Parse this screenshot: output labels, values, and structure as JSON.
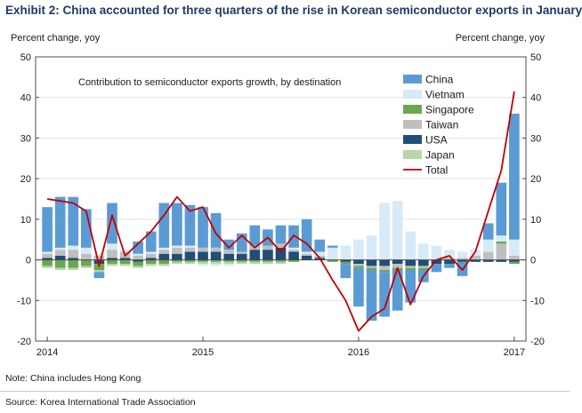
{
  "header": {
    "title": "Exhibit 2: China accounted for three quarters of the rise in Korean semiconductor exports in January"
  },
  "footer": {
    "note": "Note: China includes Hong Kong",
    "source": "Source: Korea International Trade Association"
  },
  "colors": {
    "China": "#5b9bd5",
    "Vietnam": "#d6eaf8",
    "Singapore": "#6aa84f",
    "Taiwan": "#bfbfbf",
    "USA": "#1f4e79",
    "Japan": "#b6d7a8",
    "Total": "#c00000"
  },
  "chart_data": {
    "type": "bar",
    "stacked": true,
    "title": "Contribution to semiconductor exports growth, by destination",
    "ylabel_left": "Percent change, yoy",
    "ylabel_right": "Percent change, yoy",
    "ylim": [
      -20,
      50
    ],
    "yticks": [
      -20,
      -10,
      0,
      10,
      20,
      30,
      40,
      50
    ],
    "x_ticks": [
      {
        "label": "2014",
        "index": 0
      },
      {
        "label": "2015",
        "index": 12
      },
      {
        "label": "2016",
        "index": 24
      },
      {
        "label": "2017",
        "index": 36
      }
    ],
    "legend_position": "top-right",
    "categories": [
      "Jan-14",
      "Feb-14",
      "Mar-14",
      "Apr-14",
      "May-14",
      "Jun-14",
      "Jul-14",
      "Aug-14",
      "Sep-14",
      "Oct-14",
      "Nov-14",
      "Dec-14",
      "Jan-15",
      "Feb-15",
      "Mar-15",
      "Apr-15",
      "May-15",
      "Jun-15",
      "Jul-15",
      "Aug-15",
      "Sep-15",
      "Oct-15",
      "Nov-15",
      "Dec-15",
      "Jan-16",
      "Feb-16",
      "Mar-16",
      "Apr-16",
      "May-16",
      "Jun-16",
      "Jul-16",
      "Aug-16",
      "Sep-16",
      "Oct-16",
      "Nov-16",
      "Dec-16",
      "Jan-17"
    ],
    "series": [
      {
        "name": "USA",
        "kind": "bar",
        "values": [
          0.5,
          1.0,
          0.5,
          0.0,
          -1.0,
          0.5,
          0.5,
          -0.5,
          0.5,
          1.5,
          1.5,
          2.0,
          2.0,
          2.0,
          1.5,
          1.5,
          2.5,
          2.5,
          3.0,
          2.0,
          1.0,
          0.5,
          0.0,
          -0.5,
          -1.0,
          -1.5,
          -1.5,
          -1.0,
          -1.5,
          -1.5,
          -1.0,
          -1.0,
          -0.5,
          -0.5,
          -0.5,
          -0.5,
          -0.5
        ]
      },
      {
        "name": "Taiwan",
        "kind": "bar",
        "values": [
          1.0,
          1.5,
          2.0,
          1.5,
          1.0,
          2.0,
          1.5,
          1.0,
          1.0,
          1.0,
          1.5,
          1.0,
          1.0,
          1.0,
          1.0,
          0.5,
          1.0,
          1.0,
          1.0,
          0.5,
          0.5,
          0.5,
          0.0,
          0.0,
          -0.5,
          -0.5,
          -1.0,
          -1.0,
          -0.5,
          -0.5,
          0.0,
          0.5,
          0.5,
          1.0,
          2.0,
          4.0,
          1.0
        ]
      },
      {
        "name": "Singapore",
        "kind": "bar",
        "values": [
          -1.5,
          -2.0,
          -2.0,
          -1.5,
          -1.5,
          -1.0,
          -1.0,
          -1.0,
          -1.0,
          -1.0,
          -0.5,
          -0.5,
          -0.5,
          -0.5,
          -0.5,
          -0.5,
          -0.5,
          -0.5,
          -0.5,
          -0.5,
          0.0,
          0.0,
          -0.5,
          -0.5,
          -0.5,
          -0.5,
          -0.5,
          -0.5,
          -0.5,
          -0.5,
          0.0,
          0.0,
          0.0,
          0.0,
          0.0,
          0.5,
          -0.5
        ]
      },
      {
        "name": "Japan",
        "kind": "bar",
        "values": [
          -0.5,
          -0.5,
          -0.5,
          -0.5,
          -0.5,
          -0.5,
          -0.5,
          -0.5,
          -0.5,
          -0.5,
          -0.5,
          -0.5,
          -0.5,
          -0.5,
          -0.5,
          -0.5,
          -0.5,
          -0.5,
          -0.5,
          0.0,
          0.0,
          0.0,
          0.0,
          0.0,
          0.0,
          0.0,
          0.0,
          0.0,
          0.0,
          0.0,
          0.0,
          0.0,
          0.0,
          0.0,
          0.0,
          0.0,
          0.0
        ]
      },
      {
        "name": "Vietnam",
        "kind": "bar",
        "values": [
          0.5,
          0.5,
          1.0,
          1.5,
          0.5,
          1.5,
          0.5,
          0.5,
          0.5,
          0.5,
          0.5,
          0.5,
          -0.5,
          -0.5,
          -0.5,
          0.0,
          0.0,
          0.0,
          0.0,
          0.5,
          0.5,
          1.0,
          3.0,
          3.5,
          5.0,
          6.0,
          14.0,
          14.5,
          7.0,
          4.0,
          3.5,
          2.0,
          1.5,
          1.5,
          3.0,
          1.5,
          4.0
        ]
      },
      {
        "name": "China",
        "kind": "bar",
        "values": [
          11.0,
          12.5,
          12.0,
          9.5,
          -1.5,
          10.0,
          0.0,
          3.0,
          5.0,
          11.0,
          10.5,
          10.0,
          10.0,
          8.5,
          2.5,
          4.5,
          5.0,
          4.0,
          4.5,
          5.5,
          8.0,
          3.0,
          0.5,
          -3.5,
          -9.5,
          -12.5,
          -11.0,
          -10.0,
          -8.0,
          -3.0,
          -2.0,
          -1.0,
          -3.5,
          0.0,
          4.0,
          13.0,
          31.0
        ]
      },
      {
        "name": "Total",
        "kind": "line",
        "values": [
          15.0,
          14.5,
          14.0,
          12.0,
          -1.5,
          11.0,
          1.0,
          4.0,
          7.0,
          11.0,
          15.5,
          12.0,
          13.0,
          6.5,
          3.0,
          6.0,
          3.0,
          5.5,
          2.0,
          6.0,
          4.0,
          0.5,
          -5.0,
          -10.0,
          -17.5,
          -14.0,
          -12.0,
          -2.0,
          -11.0,
          -4.0,
          0.0,
          1.0,
          -2.5,
          2.0,
          12.0,
          22.0,
          41.5
        ]
      }
    ]
  }
}
